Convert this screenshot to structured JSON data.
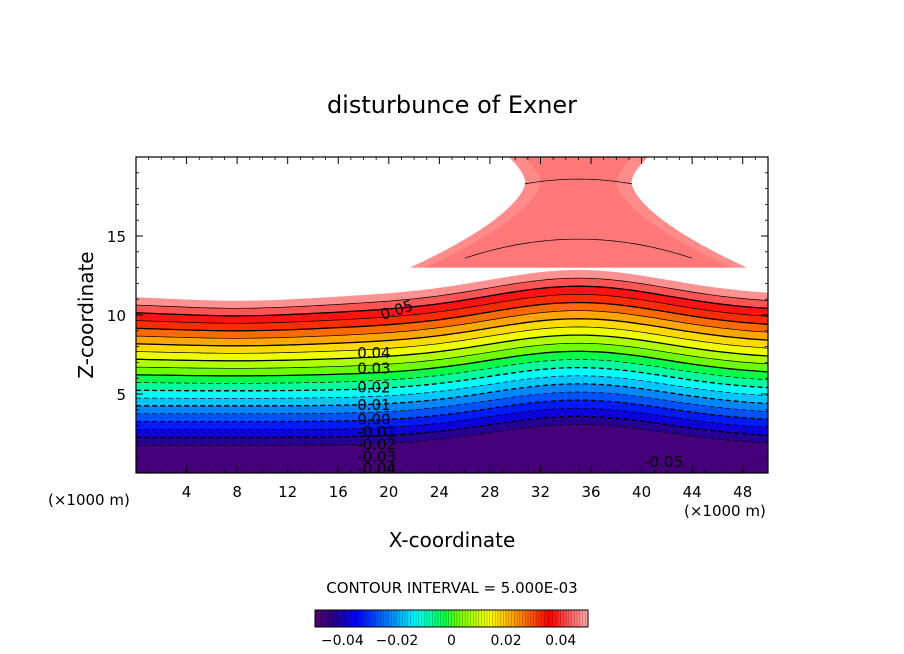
{
  "chart_data": {
    "type": "contour",
    "title": "disturbunce of Exner",
    "xlabel": "X-coordinate",
    "ylabel": "Z-coordinate",
    "x_unit": "(×1000 m)",
    "y_unit": "(×1000 m)",
    "xlim": [
      0,
      50
    ],
    "ylim": [
      0,
      20
    ],
    "x_ticks": [
      4,
      8,
      12,
      16,
      20,
      24,
      28,
      32,
      36,
      40,
      44,
      48
    ],
    "y_ticks": [
      5,
      10,
      15
    ],
    "x_tick_labels": [
      "4",
      "8",
      "12",
      "16",
      "20",
      "24",
      "28",
      "32",
      "36",
      "40",
      "44",
      "48"
    ],
    "y_tick_labels": [
      "5",
      "10",
      "15"
    ],
    "contour_interval_text": "CONTOUR INTERVAL = 5.000E-03",
    "contour_interval": 0.005,
    "value_range": [
      -0.05,
      0.05
    ],
    "contour_labels": [
      {
        "text": "0.05",
        "x": 19.5,
        "z": 10.0
      },
      {
        "text": "0.04",
        "x": 17.5,
        "z": 7.6
      },
      {
        "text": "0.03",
        "x": 17.5,
        "z": 6.6
      },
      {
        "text": "0.02",
        "x": 17.5,
        "z": 5.4
      },
      {
        "text": "0.01",
        "x": 17.5,
        "z": 4.3
      },
      {
        "text": "0.00",
        "x": 17.5,
        "z": 3.4
      },
      {
        "text": "-0.01",
        "x": 17.5,
        "z": 2.6
      },
      {
        "text": "-0.02",
        "x": 17.5,
        "z": 1.8
      },
      {
        "text": "-0.03",
        "x": 17.5,
        "z": 1.0
      },
      {
        "text": "-0.04",
        "x": 17.5,
        "z": 0.3
      },
      {
        "text": "-0.05",
        "x": 40.2,
        "z": 0.7
      }
    ],
    "colorbar": {
      "ticks": [
        -0.04,
        -0.02,
        0,
        0.02,
        0.04
      ],
      "tick_labels": [
        "−0.04",
        "−0.02",
        "0",
        "0.02",
        "0.04"
      ]
    }
  }
}
